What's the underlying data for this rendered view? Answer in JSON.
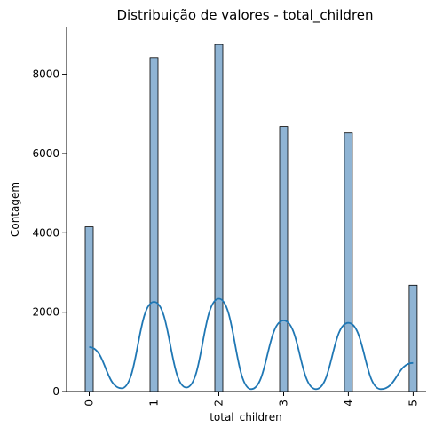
{
  "chart_data": {
    "type": "bar",
    "title": "Distribuição de valores - total_children",
    "xlabel": "total_children",
    "ylabel": "Contagem",
    "categories": [
      "0",
      "1",
      "2",
      "3",
      "4",
      "5"
    ],
    "x": [
      0,
      1,
      2,
      3,
      4,
      5
    ],
    "values": [
      4150,
      8420,
      8750,
      6680,
      6520,
      2680
    ],
    "xlim": [
      -0.35,
      5.2
    ],
    "ylim": [
      0,
      9200
    ],
    "yticks": [
      0,
      2000,
      4000,
      6000,
      8000
    ],
    "yticklabels": [
      "0",
      "2000",
      "4000",
      "6000",
      "8000"
    ],
    "grid": false,
    "kde": {
      "x": [
        0,
        0.5,
        1,
        1.5,
        2,
        2.5,
        3,
        3.5,
        4,
        4.5,
        5
      ],
      "y": [
        1120,
        80,
        2260,
        100,
        2340,
        60,
        1790,
        60,
        1730,
        60,
        720
      ]
    },
    "colors": {
      "bar_fill": "#8fb4d4",
      "kde_line": "#1f77b4"
    }
  }
}
